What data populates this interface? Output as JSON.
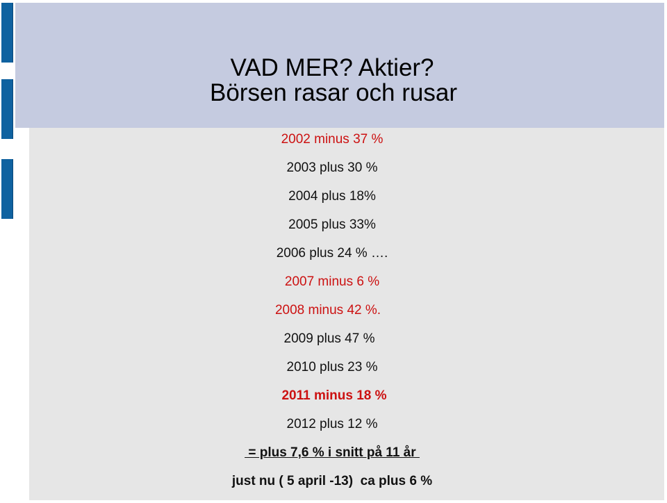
{
  "title": {
    "line1": "VAD MER? Aktier?",
    "line2": "Börsen rasar och rusar"
  },
  "entries": [
    {
      "text": "2002 minus 37 %",
      "color": "red"
    },
    {
      "text": "2003 plus 30 %",
      "color": "black"
    },
    {
      "text": "2004 plus 18%",
      "color": "black"
    },
    {
      "text": "2005 plus 33%",
      "color": "black"
    },
    {
      "text": "2006 plus 24 % ….",
      "color": "black"
    },
    {
      "text": "2007 minus 6 %",
      "color": "red"
    },
    {
      "text": "2008 minus 42 %.",
      "color": "red"
    },
    {
      "text": "2009 plus 47 %",
      "color": "black"
    },
    {
      "text": "2010  plus 23 %",
      "color": "black"
    },
    {
      "text": "2011 minus 18 %",
      "color": "red"
    },
    {
      "text": "2012 plus 12 %",
      "color": "black"
    }
  ],
  "summary": {
    "average": " = plus 7,6 % i snitt på 11 år ",
    "current": "just nu ( 5 april -13)  ca plus 6 %"
  },
  "colors": {
    "red": "#cc1111",
    "black": "#111111",
    "band": "#c5cbe0",
    "panel": "#e6e6e6",
    "edge_bars": "#0f62a0"
  }
}
